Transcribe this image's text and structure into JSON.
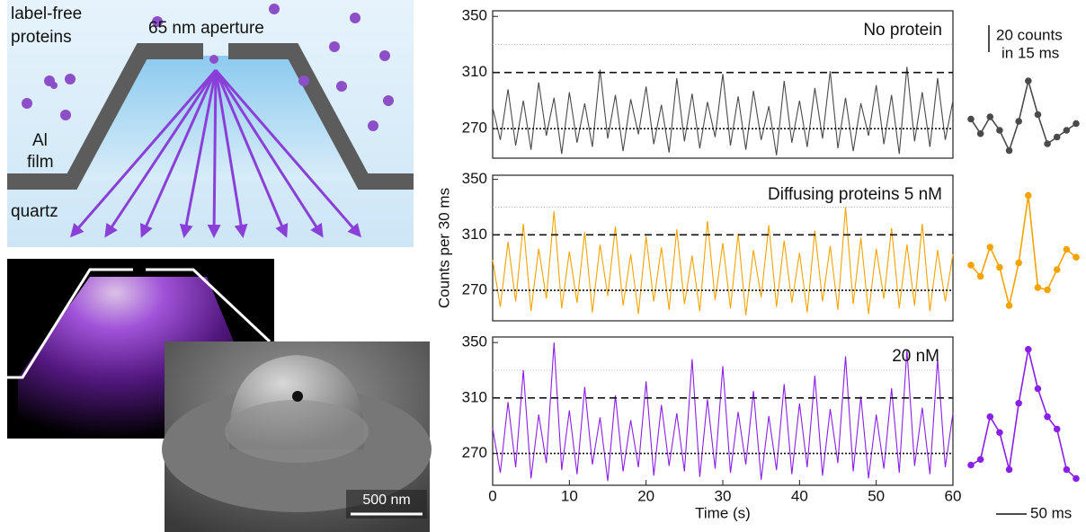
{
  "diagram": {
    "proteins_label": [
      "label-free",
      "proteins"
    ],
    "aperture_label": "65 nm aperture",
    "film_label": [
      "Al",
      "film"
    ],
    "substrate_label": "quartz",
    "sem_scale": "500 nm"
  },
  "chart_data": [
    {
      "type": "line",
      "color": "#4a4a4a",
      "frame": true,
      "annotation": "No protein",
      "x": [
        0,
        1,
        2,
        3,
        4,
        5,
        6,
        7,
        8,
        9,
        10,
        11,
        12,
        13,
        14,
        15,
        16,
        17,
        18,
        19,
        20,
        21,
        22,
        23,
        24,
        25,
        26,
        27,
        28,
        29,
        30,
        31,
        32,
        33,
        34,
        35,
        36,
        37,
        38,
        39,
        40,
        41,
        42,
        43,
        44,
        45,
        46,
        47,
        48,
        49,
        50,
        51,
        52,
        53,
        54,
        55,
        56,
        57,
        58,
        59,
        60
      ],
      "values": [
        285,
        262,
        298,
        258,
        290,
        255,
        303,
        265,
        292,
        252,
        296,
        260,
        288,
        257,
        312,
        263,
        294,
        254,
        291,
        266,
        300,
        259,
        287,
        253,
        306,
        261,
        295,
        256,
        289,
        264,
        309,
        258,
        293,
        255,
        297,
        262,
        286,
        251,
        304,
        260,
        290,
        257,
        299,
        263,
        311,
        256,
        292,
        254,
        288,
        265,
        301,
        259,
        294,
        252,
        314,
        261,
        296,
        257,
        306,
        262,
        290
      ],
      "xlim": [
        0,
        60
      ],
      "ylim": [
        249,
        354
      ],
      "yticks": [
        270,
        310,
        350
      ],
      "gridlines": [
        330
      ],
      "hlines": [
        {
          "value": 310,
          "style": "dashed"
        },
        {
          "value": 270,
          "style": "dotted"
        }
      ]
    },
    {
      "type": "line",
      "color": "#f5a300",
      "frame": true,
      "annotation": "Diffusing proteins 5 nM",
      "ylabel": "Counts per 30 ms",
      "x": [
        0,
        1,
        2,
        3,
        4,
        5,
        6,
        7,
        8,
        9,
        10,
        11,
        12,
        13,
        14,
        15,
        16,
        17,
        18,
        19,
        20,
        21,
        22,
        23,
        24,
        25,
        26,
        27,
        28,
        29,
        30,
        31,
        32,
        33,
        34,
        35,
        36,
        37,
        38,
        39,
        40,
        41,
        42,
        43,
        44,
        45,
        46,
        47,
        48,
        49,
        50,
        51,
        52,
        53,
        54,
        55,
        56,
        57,
        58,
        59,
        60
      ],
      "values": [
        292,
        258,
        305,
        262,
        318,
        255,
        300,
        264,
        327,
        257,
        298,
        261,
        312,
        254,
        303,
        266,
        316,
        259,
        296,
        253,
        309,
        262,
        301,
        256,
        314,
        260,
        295,
        255,
        320,
        263,
        304,
        257,
        311,
        252,
        299,
        265,
        317,
        258,
        306,
        261,
        297,
        254,
        313,
        262,
        302,
        256,
        330,
        260,
        308,
        253,
        300,
        264,
        315,
        257,
        303,
        259,
        318,
        255,
        299,
        262,
        296
      ],
      "xlim": [
        0,
        60
      ],
      "ylim": [
        248,
        353
      ],
      "yticks": [
        270,
        310,
        350
      ],
      "gridlines": [
        330
      ],
      "hlines": [
        {
          "value": 310,
          "style": "dashed"
        },
        {
          "value": 270,
          "style": "dotted"
        }
      ]
    },
    {
      "type": "line",
      "color": "#8a1fe6",
      "frame": true,
      "annotation": "20 nM",
      "xlabel": "Time (s)",
      "x": [
        0,
        1,
        2,
        3,
        4,
        5,
        6,
        7,
        8,
        9,
        10,
        11,
        12,
        13,
        14,
        15,
        16,
        17,
        18,
        19,
        20,
        21,
        22,
        23,
        24,
        25,
        26,
        27,
        28,
        29,
        30,
        31,
        32,
        33,
        34,
        35,
        36,
        37,
        38,
        39,
        40,
        41,
        42,
        43,
        44,
        45,
        46,
        47,
        48,
        49,
        50,
        51,
        52,
        53,
        54,
        55,
        56,
        57,
        58,
        59,
        60
      ],
      "values": [
        288,
        256,
        307,
        260,
        330,
        252,
        298,
        263,
        350,
        258,
        301,
        255,
        318,
        262,
        296,
        250,
        312,
        257,
        294,
        260,
        322,
        254,
        305,
        261,
        299,
        257,
        338,
        253,
        309,
        259,
        333,
        256,
        300,
        262,
        315,
        251,
        297,
        258,
        320,
        255,
        306,
        260,
        326,
        254,
        302,
        263,
        340,
        257,
        311,
        252,
        298,
        259,
        317,
        256,
        345,
        261,
        303,
        255,
        338,
        260,
        299
      ],
      "xlim": [
        0,
        60
      ],
      "ylim": [
        247,
        354
      ],
      "yticks": [
        270,
        310,
        350
      ],
      "xticks": [
        0,
        10,
        20,
        30,
        40,
        50,
        60
      ],
      "gridlines": [
        330
      ],
      "hlines": [
        {
          "value": 310,
          "style": "dashed"
        },
        {
          "value": 270,
          "style": "dotted"
        }
      ]
    },
    {
      "type": "line",
      "color": "#4a4a4a",
      "markers": true,
      "annotation": [
        "20 counts",
        "in 15 ms"
      ],
      "x": [
        0,
        15,
        30,
        45,
        60,
        75,
        90,
        105,
        120,
        135,
        150,
        165
      ],
      "values": [
        296,
        283,
        298,
        286,
        268,
        294,
        330,
        300,
        274,
        280,
        286,
        292
      ],
      "xlim": [
        0,
        165
      ],
      "ylim": [
        262,
        342
      ]
    },
    {
      "type": "line",
      "color": "#f5a300",
      "markers": true,
      "x": [
        0,
        15,
        30,
        45,
        60,
        75,
        90,
        105,
        120,
        135,
        150,
        165
      ],
      "values": [
        268,
        258,
        284,
        266,
        232,
        270,
        330,
        248,
        246,
        264,
        282,
        275
      ],
      "xlim": [
        0,
        165
      ],
      "ylim": [
        220,
        340
      ]
    },
    {
      "type": "line",
      "color": "#8a1fe6",
      "markers": true,
      "annotation": "50 ms",
      "x": [
        0,
        15,
        30,
        45,
        60,
        75,
        90,
        105,
        120,
        135,
        150,
        165
      ],
      "values": [
        227,
        232,
        270,
        256,
        223,
        282,
        330,
        295,
        270,
        259,
        223,
        215
      ],
      "xlim": [
        0,
        165
      ],
      "ylim": [
        205,
        345
      ]
    }
  ]
}
